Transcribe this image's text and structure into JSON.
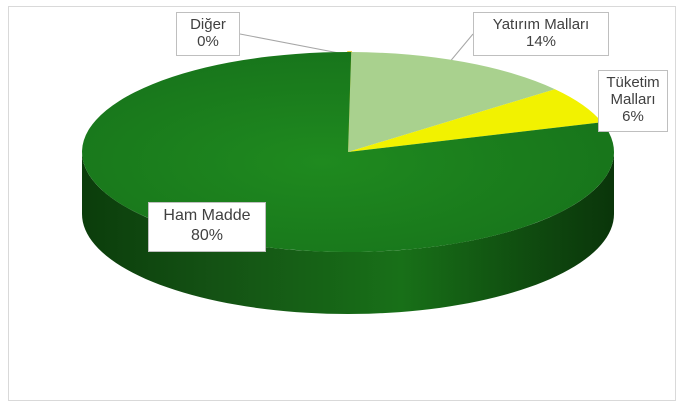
{
  "chart_data": {
    "type": "pie",
    "style": "3d",
    "slices": [
      {
        "label": "Diğer",
        "value": 0,
        "display": "0%",
        "color": "#e8c200"
      },
      {
        "label": "Yatırım Malları",
        "value": 14,
        "display": "14%",
        "color": "#a9d18e"
      },
      {
        "label": "Tüketim Malları",
        "value": 6,
        "display": "6%",
        "color": "#f2f200"
      },
      {
        "label": "Ham Madde",
        "value": 80,
        "display": "80%",
        "color": "#1e7a1e"
      }
    ]
  },
  "labels": {
    "diger": {
      "name": "Diğer",
      "pct": "0%"
    },
    "yatirim": {
      "name": "Yatırım Malları",
      "pct": "14%"
    },
    "tuketim": {
      "name_line1": "Tüketim",
      "name_line2": "Malları",
      "pct": "6%"
    },
    "hammadde": {
      "name": "Ham Madde",
      "pct": "80%"
    }
  }
}
